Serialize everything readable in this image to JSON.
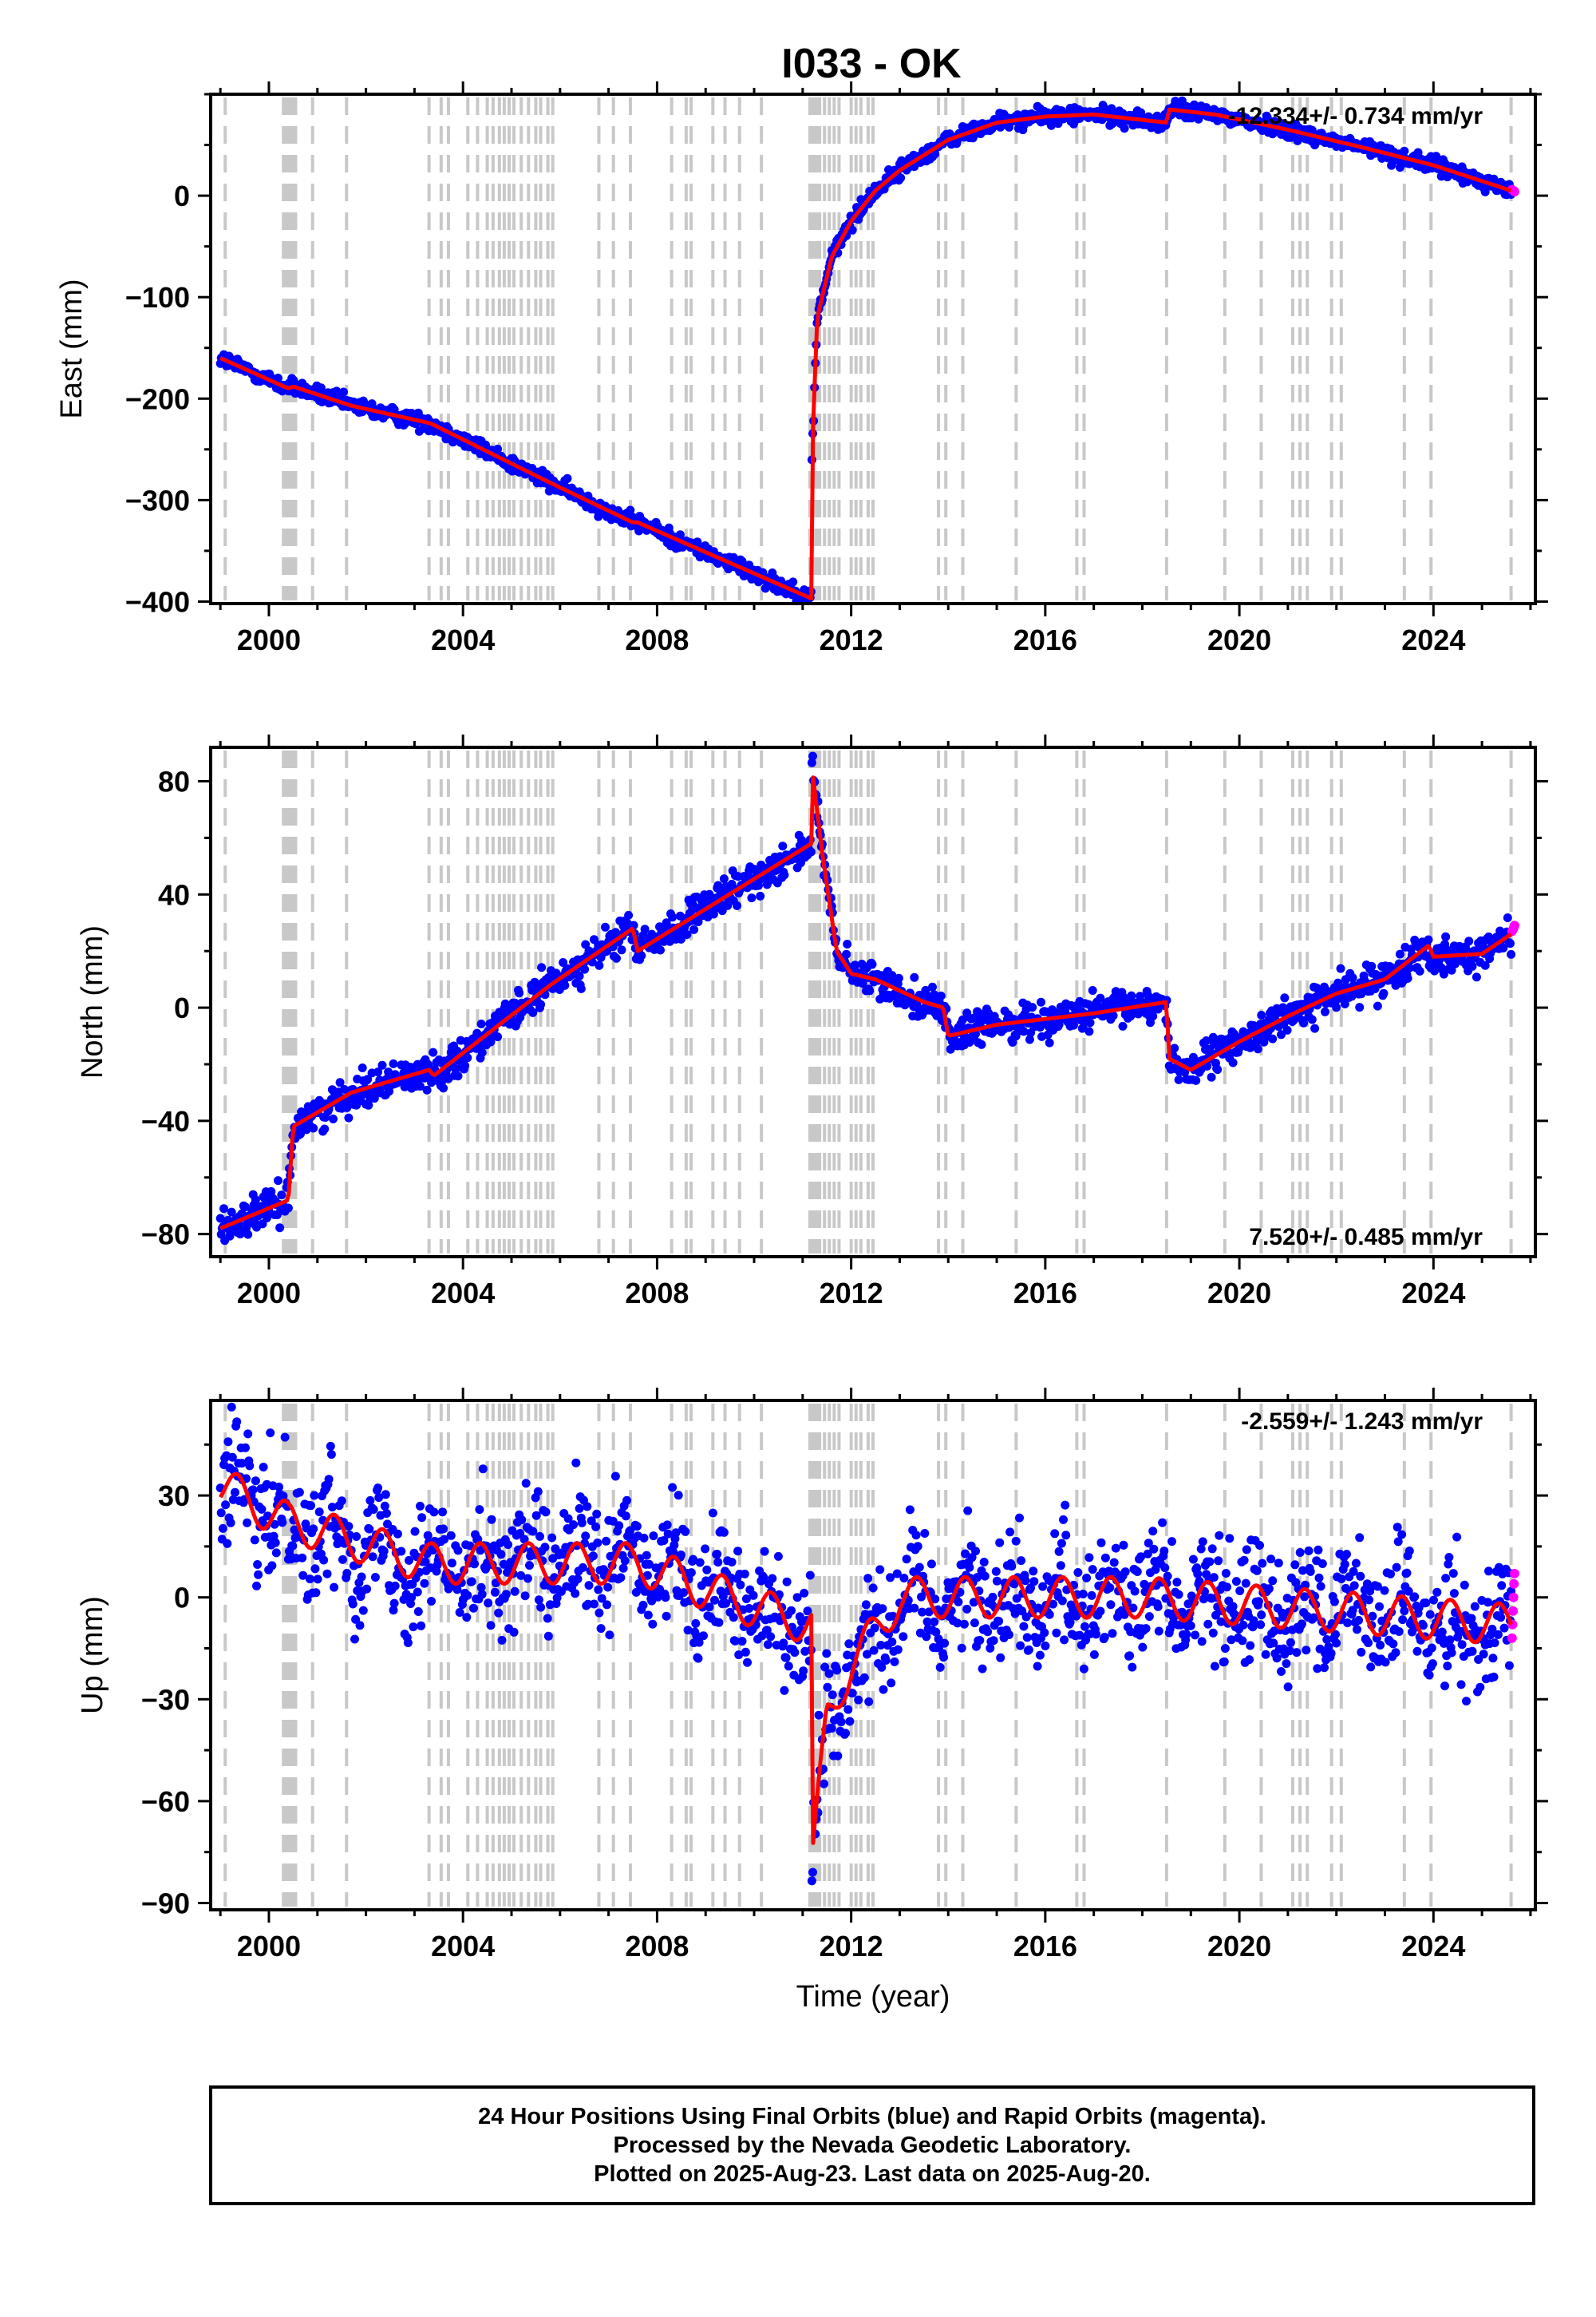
{
  "figure": {
    "title": "I033 - OK",
    "footer_lines": [
      "24 Hour Positions Using Final Orbits (blue) and Rapid Orbits (magenta).",
      "Processed by the Nevada Geodetic Laboratory.",
      "Plotted on 2025-Aug-23. Last data on 2025-Aug-20."
    ]
  },
  "chart_data": [
    {
      "type": "scatter",
      "panel": "east",
      "ylabel": "East (mm)",
      "xlim": [
        1998.8,
        2026.1
      ],
      "ylim": [
        -402,
        100
      ],
      "x_ticks": [
        2000,
        2004,
        2008,
        2012,
        2016,
        2020,
        2024
      ],
      "y_ticks": [
        -400,
        -300,
        -200,
        -100,
        0
      ],
      "rate_label": "-12.334+/- 0.734 mm/yr",
      "rate_label_position": "top-right",
      "grid": false,
      "colors": {
        "final": "#0000ff",
        "rapid": "#ff00ff",
        "model": "#ff0000",
        "events": "#c8c8c8"
      },
      "series": [
        {
          "kind": "model",
          "x": [
            1999.0,
            2000.4,
            2000.5,
            2001.7,
            2003.3,
            2003.4,
            2005.8,
            2007.5,
            2007.6,
            2011.18,
            2011.19,
            2011.3,
            2011.6,
            2012.0,
            2012.5,
            2013.0,
            2014.0,
            2015.0,
            2016.0,
            2017.0,
            2018.5,
            2018.55,
            2019.5,
            2021.0,
            2022.5,
            2024.0,
            2025.6
          ],
          "y": [
            -160,
            -190,
            -188,
            -207,
            -224,
            -226,
            -283,
            -322,
            -322,
            -397,
            -260,
            -120,
            -60,
            -25,
            5,
            25,
            55,
            72,
            78,
            80,
            72,
            85,
            80,
            65,
            48,
            30,
            5
          ]
        },
        {
          "kind": "final",
          "x": [
            1999.0,
            2000.4,
            2000.5,
            2001.7,
            2003.3,
            2003.4,
            2005.8,
            2007.5,
            2007.6,
            2011.18,
            2011.19,
            2011.3,
            2011.6,
            2012.0,
            2012.5,
            2013.0,
            2014.0,
            2015.0,
            2016.0,
            2017.0,
            2018.5,
            2018.55,
            2019.5,
            2021.0,
            2022.5,
            2024.0,
            2025.6
          ],
          "y": [
            -160,
            -190,
            -188,
            -207,
            -224,
            -226,
            -283,
            -322,
            -322,
            -397,
            -260,
            -120,
            -60,
            -25,
            5,
            25,
            55,
            72,
            78,
            80,
            72,
            85,
            80,
            65,
            48,
            30,
            5
          ],
          "spread": 4
        },
        {
          "kind": "rapid",
          "x": [
            2025.62,
            2025.65,
            2025.67
          ],
          "y": [
            6,
            5,
            4
          ]
        }
      ]
    },
    {
      "type": "scatter",
      "panel": "north",
      "ylabel": "North (mm)",
      "xlim": [
        1998.8,
        2026.1
      ],
      "ylim": [
        -88,
        92
      ],
      "x_ticks": [
        2000,
        2004,
        2008,
        2012,
        2016,
        2020,
        2024
      ],
      "y_ticks": [
        -80,
        -40,
        0,
        40,
        80
      ],
      "rate_label": "7.520+/- 0.485 mm/yr",
      "rate_label_position": "bottom-right",
      "grid": false,
      "colors": {
        "final": "#0000ff",
        "rapid": "#ff00ff",
        "model": "#ff0000",
        "events": "#c8c8c8"
      },
      "series": [
        {
          "kind": "model",
          "x": [
            1999.0,
            2000.4,
            2000.5,
            2001.7,
            2003.3,
            2003.4,
            2005.8,
            2007.5,
            2007.6,
            2011.18,
            2011.19,
            2011.4,
            2011.7,
            2012.0,
            2012.5,
            2013.5,
            2013.9,
            2014.0,
            2015.0,
            2016.0,
            2017.0,
            2018.5,
            2018.55,
            2019.0,
            2020.0,
            2021.0,
            2022.0,
            2023.0,
            2023.9,
            2024.0,
            2025.0,
            2025.6
          ],
          "y": [
            -78,
            -68,
            -42,
            -30,
            -22,
            -24,
            8,
            28,
            20,
            58,
            85,
            55,
            20,
            12,
            10,
            2,
            0,
            -10,
            -6,
            -4,
            -2,
            2,
            -18,
            -22,
            -12,
            -3,
            5,
            10,
            22,
            18,
            19,
            26
          ]
        },
        {
          "kind": "final",
          "x": [
            1999.0,
            2000.4,
            2000.5,
            2001.7,
            2003.3,
            2003.4,
            2005.8,
            2007.5,
            2007.6,
            2011.18,
            2011.19,
            2011.4,
            2011.7,
            2012.0,
            2012.5,
            2013.5,
            2013.9,
            2014.0,
            2015.0,
            2016.0,
            2017.0,
            2018.5,
            2018.55,
            2019.0,
            2020.0,
            2021.0,
            2022.0,
            2023.0,
            2023.9,
            2024.0,
            2025.0,
            2025.6
          ],
          "y": [
            -78,
            -68,
            -42,
            -30,
            -22,
            -24,
            8,
            28,
            20,
            58,
            85,
            55,
            20,
            12,
            10,
            2,
            0,
            -10,
            -6,
            -4,
            -2,
            2,
            -18,
            -22,
            -12,
            -3,
            5,
            10,
            22,
            18,
            19,
            26
          ],
          "spread": 3
        },
        {
          "kind": "rapid",
          "x": [
            2025.62,
            2025.65,
            2025.67
          ],
          "y": [
            27,
            28,
            29
          ]
        }
      ]
    },
    {
      "type": "scatter",
      "panel": "up",
      "ylabel": "Up (mm)",
      "xlabel": "Time (year)",
      "xlim": [
        1998.8,
        2026.1
      ],
      "ylim": [
        -92,
        58
      ],
      "x_ticks": [
        2000,
        2004,
        2008,
        2012,
        2016,
        2020,
        2024
      ],
      "y_ticks": [
        -90,
        -60,
        -30,
        0,
        30
      ],
      "rate_label": "-2.559+/- 1.243 mm/yr",
      "rate_label_position": "top-right",
      "grid": false,
      "colors": {
        "final": "#0000ff",
        "rapid": "#ff00ff",
        "model": "#ff0000",
        "events": "#c8c8c8"
      },
      "series": [
        {
          "kind": "model",
          "x": [
            1999.0,
            2000.4,
            2000.5,
            2003.3,
            2003.4,
            2007.6,
            2010.0,
            2011.18,
            2011.19,
            2011.5,
            2012.0,
            2013.0,
            2018.0,
            2025.6
          ],
          "y": [
            33,
            22,
            22,
            10,
            10,
            10,
            -3,
            -8,
            -80,
            -35,
            -20,
            0,
            0,
            -8
          ],
          "seasonal": 6
        },
        {
          "kind": "final",
          "x": [
            1999.0,
            2000.4,
            2000.5,
            2003.3,
            2003.4,
            2007.6,
            2010.0,
            2011.18,
            2011.19,
            2011.5,
            2012.0,
            2013.0,
            2018.0,
            2025.6
          ],
          "y": [
            33,
            22,
            22,
            10,
            10,
            10,
            -3,
            -8,
            -80,
            -35,
            -20,
            0,
            0,
            -8
          ],
          "spread": 9
        },
        {
          "kind": "rapid",
          "x": [
            2025.62,
            2025.63,
            2025.64,
            2025.65,
            2025.66,
            2025.67
          ],
          "y": [
            -12,
            -8,
            -4,
            0,
            4,
            7
          ]
        }
      ]
    }
  ],
  "events_x": [
    1999.1,
    2000.3,
    2000.35,
    2000.4,
    2000.45,
    2000.5,
    2000.55,
    2000.9,
    2001.6,
    2003.3,
    2003.55,
    2003.7,
    2004.1,
    2004.3,
    2004.5,
    2004.62,
    2004.75,
    2004.85,
    2004.95,
    2005.05,
    2005.2,
    2005.35,
    2005.5,
    2005.6,
    2005.75,
    2005.85,
    2006.8,
    2007.1,
    2007.45,
    2008.3,
    2008.6,
    2008.7,
    2009.15,
    2009.4,
    2009.7,
    2010.15,
    2011.15,
    2011.2,
    2011.25,
    2011.3,
    2011.35,
    2011.45,
    2011.55,
    2011.65,
    2011.75,
    2012.0,
    2012.1,
    2012.2,
    2012.35,
    2012.45,
    2013.8,
    2013.95,
    2014.3,
    2015.4,
    2016.65,
    2016.8,
    2018.5,
    2019.7,
    2020.45,
    2021.1,
    2021.25,
    2021.4,
    2021.9,
    2022.1,
    2023.4,
    2023.95,
    2025.6
  ]
}
